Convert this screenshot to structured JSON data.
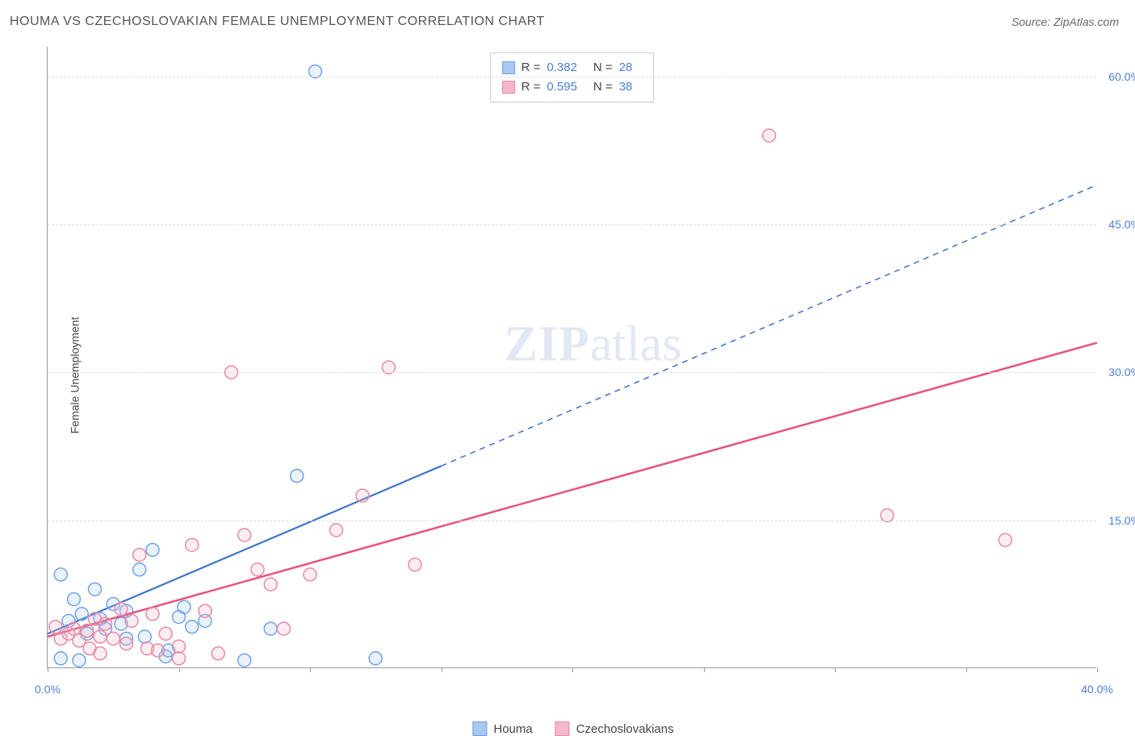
{
  "header": {
    "title": "HOUMA VS CZECHOSLOVAKIAN FEMALE UNEMPLOYMENT CORRELATION CHART",
    "source": "Source: ZipAtlas.com"
  },
  "ylabel": "Female Unemployment",
  "watermark_zip": "ZIP",
  "watermark_atlas": "atlas",
  "chart": {
    "type": "scatter",
    "background_color": "#ffffff",
    "grid_color": "#dddddd",
    "axis_color": "#999999",
    "tick_label_color": "#4a7fd8",
    "tick_fontsize": 14,
    "xlim": [
      0,
      40
    ],
    "ylim": [
      0,
      63
    ],
    "x_axis_label_left": "0.0%",
    "x_axis_label_right": "40.0%",
    "y_gridlines": [
      {
        "value": 15,
        "label": "15.0%"
      },
      {
        "value": 30,
        "label": "30.0%"
      },
      {
        "value": 45,
        "label": "45.0%"
      },
      {
        "value": 60,
        "label": "60.0%"
      }
    ],
    "x_ticks": [
      0,
      5,
      10,
      15,
      20,
      25,
      30,
      35,
      40
    ],
    "marker_radius": 8,
    "marker_stroke_width": 1.5,
    "marker_fill_opacity": 0.25,
    "series": [
      {
        "id": "houma",
        "label": "Houma",
        "color_stroke": "#6fa3e8",
        "color_fill": "#a8c8f0",
        "trend": {
          "x1": 0,
          "y1": 3.5,
          "x2": 15,
          "y2": 20.5,
          "dash_x2": 40,
          "dash_y2": 49,
          "color": "#3f74c9",
          "width": 2.2
        },
        "points": [
          [
            0.5,
            9.5
          ],
          [
            0.5,
            1.0
          ],
          [
            0.8,
            4.8
          ],
          [
            1.0,
            7.0
          ],
          [
            1.2,
            0.8
          ],
          [
            1.3,
            5.5
          ],
          [
            1.5,
            3.5
          ],
          [
            1.8,
            8.0
          ],
          [
            2.0,
            5.0
          ],
          [
            2.2,
            4.0
          ],
          [
            2.5,
            6.5
          ],
          [
            2.8,
            4.5
          ],
          [
            3.0,
            3.0
          ],
          [
            3.0,
            5.8
          ],
          [
            3.5,
            10.0
          ],
          [
            3.7,
            3.2
          ],
          [
            4.0,
            12.0
          ],
          [
            4.5,
            1.2
          ],
          [
            4.6,
            1.8
          ],
          [
            5.0,
            5.2
          ],
          [
            5.5,
            4.2
          ],
          [
            6.0,
            4.8
          ],
          [
            7.5,
            0.8
          ],
          [
            8.5,
            4.0
          ],
          [
            9.5,
            19.5
          ],
          [
            10.2,
            60.5
          ],
          [
            12.5,
            1.0
          ],
          [
            5.2,
            6.2
          ]
        ]
      },
      {
        "id": "czech",
        "label": "Czechoslovakians",
        "color_stroke": "#e88aa5",
        "color_fill": "#f5b8c9",
        "trend": {
          "x1": 0,
          "y1": 3.2,
          "x2": 40,
          "y2": 33,
          "color": "#e8537a",
          "width": 2.5
        },
        "points": [
          [
            0.3,
            4.2
          ],
          [
            0.5,
            3.0
          ],
          [
            0.8,
            3.5
          ],
          [
            1.0,
            4.0
          ],
          [
            1.2,
            2.8
          ],
          [
            1.5,
            3.8
          ],
          [
            1.8,
            5.0
          ],
          [
            2.0,
            3.2
          ],
          [
            2.2,
            4.5
          ],
          [
            2.5,
            3.0
          ],
          [
            2.8,
            6.0
          ],
          [
            3.0,
            2.5
          ],
          [
            3.2,
            4.8
          ],
          [
            3.5,
            11.5
          ],
          [
            3.8,
            2.0
          ],
          [
            4.0,
            5.5
          ],
          [
            4.5,
            3.5
          ],
          [
            5.0,
            2.2
          ],
          [
            5.5,
            12.5
          ],
          [
            6.0,
            5.8
          ],
          [
            6.5,
            1.5
          ],
          [
            7.0,
            30.0
          ],
          [
            7.5,
            13.5
          ],
          [
            8.0,
            10.0
          ],
          [
            8.5,
            8.5
          ],
          [
            9.0,
            4.0
          ],
          [
            10.0,
            9.5
          ],
          [
            11.0,
            14.0
          ],
          [
            12.0,
            17.5
          ],
          [
            13.0,
            30.5
          ],
          [
            14.0,
            10.5
          ],
          [
            27.5,
            54.0
          ],
          [
            32.0,
            15.5
          ],
          [
            36.5,
            13.0
          ],
          [
            5.0,
            1.0
          ],
          [
            4.2,
            1.8
          ],
          [
            2.0,
            1.5
          ],
          [
            1.6,
            2.0
          ]
        ]
      }
    ],
    "stats_box": {
      "border_color": "#cccccc",
      "rows": [
        {
          "swatch_fill": "#a8c8f0",
          "swatch_stroke": "#6fa3e8",
          "r_label": "R =",
          "r_value": "0.382",
          "n_label": "N =",
          "n_value": "28"
        },
        {
          "swatch_fill": "#f5b8c9",
          "swatch_stroke": "#e88aa5",
          "r_label": "R =",
          "r_value": "0.595",
          "n_label": "N =",
          "n_value": "38"
        }
      ]
    },
    "legend": [
      {
        "swatch_fill": "#a8c8f0",
        "swatch_stroke": "#6fa3e8",
        "label": "Houma"
      },
      {
        "swatch_fill": "#f5b8c9",
        "swatch_stroke": "#e88aa5",
        "label": "Czechoslovakians"
      }
    ]
  }
}
